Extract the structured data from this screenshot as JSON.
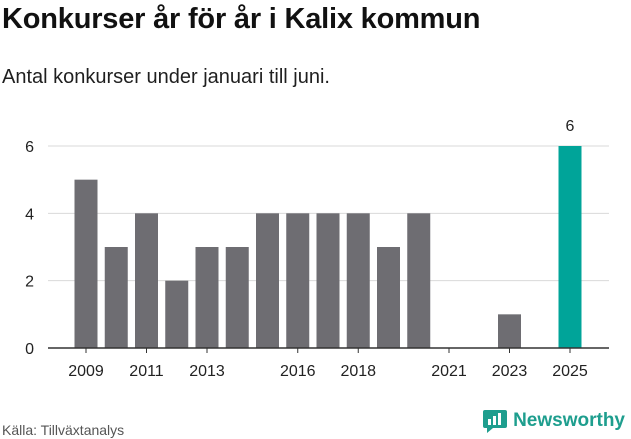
{
  "header": {
    "title": "Konkurser år för år i Kalix kommun",
    "subtitle": "Antal konkurser under januari till juni."
  },
  "footer": {
    "source": "Källa: Tillväxtanalys",
    "brand": "Newsworthy"
  },
  "colors": {
    "bar": "#6e6d72",
    "highlight": "#00a499",
    "grid": "#d9d9d9",
    "brand": "#1e9e8e"
  },
  "chart_data": {
    "type": "bar",
    "x": [
      2009,
      2010,
      2011,
      2012,
      2013,
      2014,
      2015,
      2016,
      2017,
      2018,
      2019,
      2020,
      2021,
      2022,
      2023,
      2024,
      2025
    ],
    "values": [
      5,
      3,
      4,
      2,
      3,
      3,
      4,
      4,
      4,
      4,
      3,
      4,
      0,
      0,
      1,
      0,
      6
    ],
    "x_tick_labels": [
      "2009",
      "2011",
      "2013",
      "2016",
      "2018",
      "2021",
      "2023",
      "2025"
    ],
    "y_ticks": [
      0,
      2,
      4,
      6
    ],
    "ylim": [
      0,
      6
    ],
    "highlight": {
      "x": 2025,
      "label": "6"
    },
    "grid": true,
    "xlabel": "",
    "ylabel": ""
  }
}
